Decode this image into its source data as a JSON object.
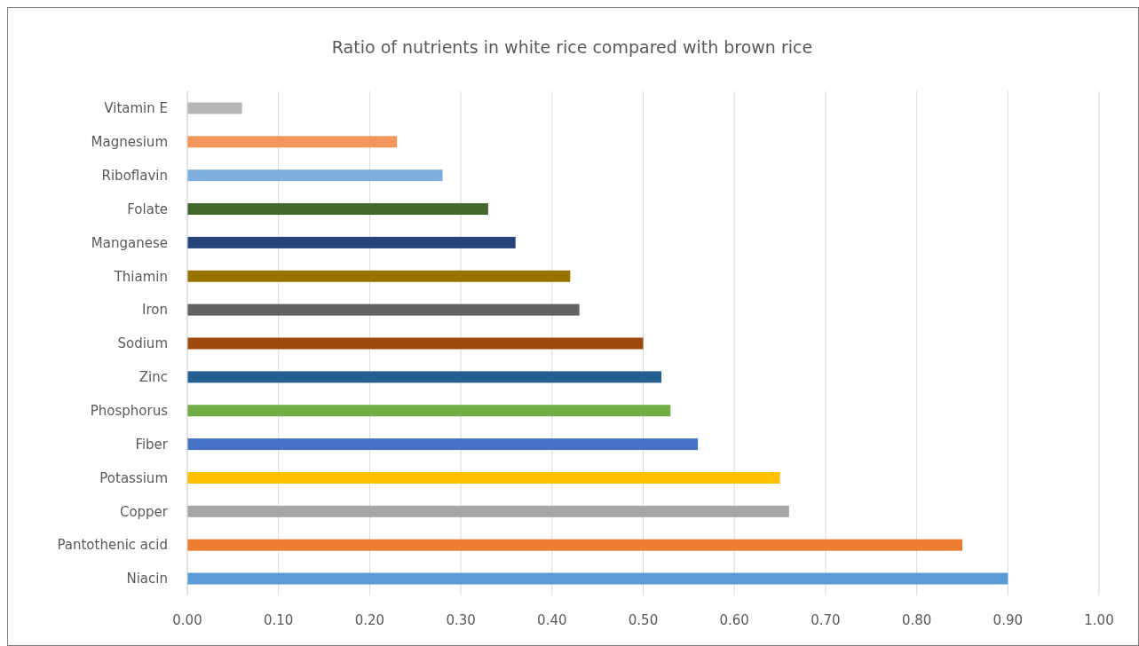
{
  "chart_data": {
    "type": "bar",
    "orientation": "horizontal",
    "title": "Ratio of nutrients in white rice compared with brown rice",
    "categories": [
      "Vitamin E",
      "Magnesium",
      "Riboflavin",
      "Folate",
      "Manganese",
      "Thiamin",
      "Iron",
      "Sodium",
      "Zinc",
      "Phosphorus",
      "Fiber",
      "Potassium",
      "Copper",
      "Pantothenic acid",
      "Niacin"
    ],
    "values": [
      0.06,
      0.23,
      0.28,
      0.33,
      0.36,
      0.42,
      0.43,
      0.5,
      0.52,
      0.53,
      0.56,
      0.65,
      0.66,
      0.85,
      0.9
    ],
    "colors": [
      "#b7b7b7",
      "#f1975a",
      "#7cafdd",
      "#43682b",
      "#264478",
      "#997300",
      "#636363",
      "#9e480e",
      "#255e91",
      "#70ad47",
      "#4472c4",
      "#ffc000",
      "#a5a5a5",
      "#ed7d31",
      "#5b9bd5"
    ],
    "xlim": [
      0,
      1
    ],
    "xticks": [
      {
        "value": 0,
        "label": "0.00"
      },
      {
        "value": 0.1,
        "label": "0.10"
      },
      {
        "value": 0.2,
        "label": "0.20"
      },
      {
        "value": 0.3,
        "label": "0.30"
      },
      {
        "value": 0.4,
        "label": "0.40"
      },
      {
        "value": 0.5,
        "label": "0.50"
      },
      {
        "value": 0.6,
        "label": "0.60"
      },
      {
        "value": 0.7,
        "label": "0.70"
      },
      {
        "value": 0.8,
        "label": "0.80"
      },
      {
        "value": 0.9,
        "label": "0.90"
      },
      {
        "value": 1,
        "label": "1.00"
      }
    ],
    "grid": "x"
  }
}
